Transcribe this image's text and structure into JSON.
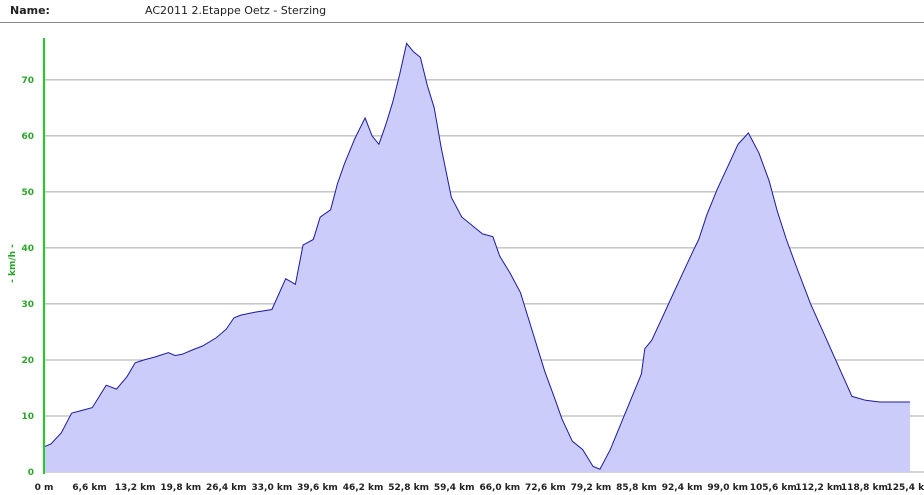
{
  "header": {
    "name_label": "Name:",
    "name_value": "AC2011 2.Etappe Oetz - Sterzing"
  },
  "colors": {
    "area_fill": "#ccccfa",
    "area_stroke": "#1a1a9e",
    "y_axis": "#22cc22",
    "y_tick_text": "#2aa52a",
    "grid": "#a8a8a8"
  },
  "chart_data": {
    "type": "area",
    "xlabel": "",
    "ylabel": "- km/h -",
    "xlim": [
      0,
      125.4
    ],
    "ylim": [
      0,
      78
    ],
    "y_ticks": [
      0,
      10,
      20,
      30,
      40,
      50,
      60,
      70
    ],
    "x_tick_labels": [
      "0 m",
      "6,6 km",
      "13,2 km",
      "19,8 km",
      "26,4 km",
      "33,0 km",
      "39,6 km",
      "46,2 km",
      "52,8 km",
      "59,4 km",
      "66,0 km",
      "72,6 km",
      "79,2 km",
      "85,8 km",
      "92,4 km",
      "99,0 km",
      "105,6 km",
      "112,2 km",
      "118,8 km",
      "125,4 km"
    ],
    "x_tick_values": [
      0,
      6.6,
      13.2,
      19.8,
      26.4,
      33.0,
      39.6,
      46.2,
      52.8,
      59.4,
      66.0,
      72.6,
      79.2,
      85.8,
      92.4,
      99.0,
      105.6,
      112.2,
      118.8,
      125.4
    ],
    "grid": true,
    "series": [
      {
        "x": [
          0,
          1.0,
          2.5,
          4.0,
          5.5,
          7.0,
          9.0,
          10.5,
          12.0,
          13.2,
          14.5,
          16.0,
          18.0,
          19.0,
          20.0,
          21.5,
          23.0,
          25.0,
          26.4,
          27.5,
          28.5,
          30.5,
          33.0,
          35.0,
          36.4,
          37.5,
          39.0,
          40.0,
          41.5,
          42.5,
          43.5,
          45.0,
          46.5,
          47.5,
          48.5,
          49.5,
          50.5,
          51.5,
          52.5,
          53.5,
          54.5,
          55.5,
          56.5,
          57.5,
          59.0,
          60.5,
          62.0,
          63.5,
          65.0,
          66.0,
          67.5,
          69.0,
          70.0,
          71.0,
          72.5,
          74.0,
          75.0,
          76.5,
          78.0,
          79.5,
          80.5,
          82.0,
          83.5,
          85.0,
          86.5,
          87.0,
          88.0,
          89.5,
          91.0,
          92.5,
          94.0,
          94.8,
          96.0,
          97.5,
          99.0,
          100.5,
          102.0,
          103.5,
          105.0,
          106.2,
          107.5,
          109.0,
          111.0,
          113.0,
          115.0,
          117.0,
          119.0,
          121.0,
          123.0,
          124.0,
          125.4
        ],
        "y": [
          4.5,
          5.0,
          7.0,
          10.5,
          11.0,
          11.5,
          15.5,
          14.8,
          17.0,
          19.5,
          20.0,
          20.5,
          21.3,
          20.8,
          21.0,
          21.8,
          22.5,
          24.0,
          25.5,
          27.5,
          28.0,
          28.5,
          29.0,
          34.5,
          33.5,
          40.5,
          41.5,
          45.5,
          46.8,
          51.5,
          55.0,
          59.5,
          63.2,
          60.0,
          58.5,
          62.0,
          66.0,
          71.0,
          76.5,
          75.0,
          74.0,
          69.0,
          65.0,
          58.0,
          49.0,
          45.5,
          44.0,
          42.5,
          42.0,
          38.5,
          35.5,
          32.0,
          28.0,
          24.0,
          18.0,
          13.0,
          9.5,
          5.5,
          4.0,
          1.0,
          0.5,
          4.0,
          8.5,
          13.0,
          17.5,
          22.0,
          23.5,
          27.5,
          31.5,
          35.5,
          39.5,
          41.5,
          46.0,
          50.5,
          54.5,
          58.5,
          60.5,
          57.0,
          52.0,
          46.5,
          41.5,
          36.5,
          30.0,
          24.5,
          19.0,
          13.5,
          12.8,
          12.5,
          12.5,
          12.5,
          12.5
        ]
      }
    ]
  }
}
